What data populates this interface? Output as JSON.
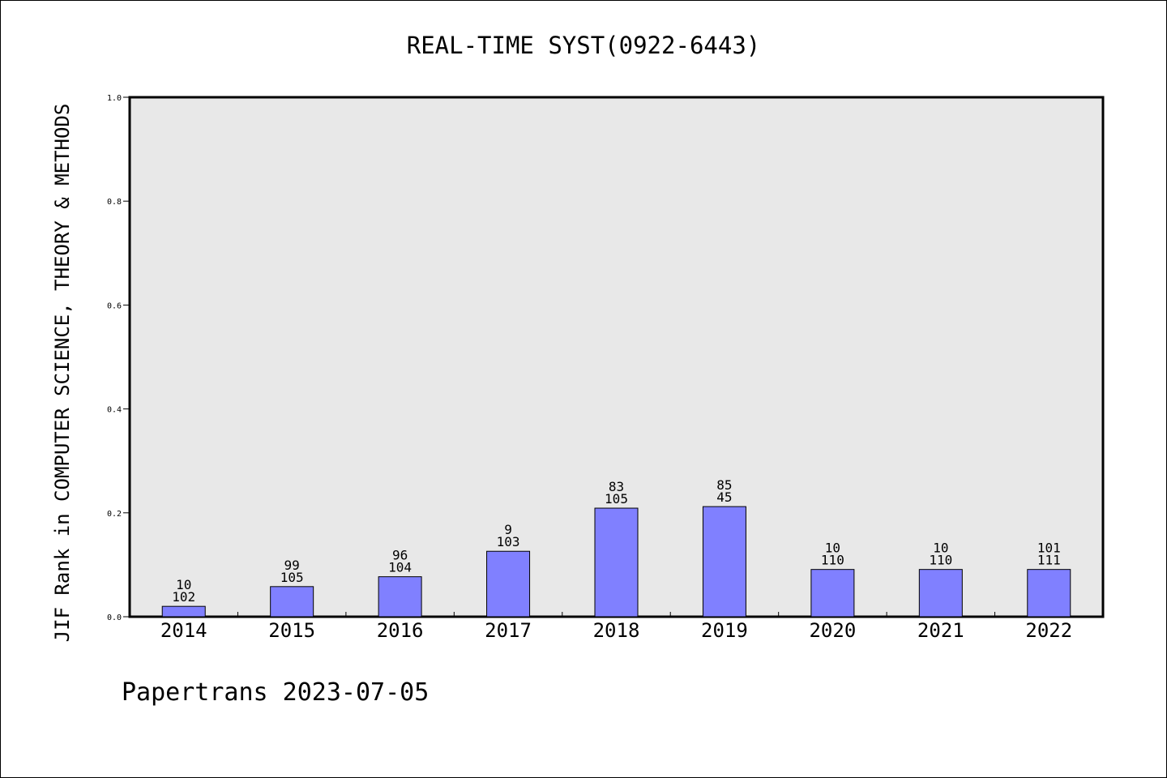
{
  "chart_data": {
    "type": "bar",
    "title": "REAL-TIME SYST(0922-6443)",
    "ylabel": "JIF Rank in COMPUTER SCIENCE, THEORY & METHODS",
    "xlabel": "",
    "ylim": [
      0,
      1.0
    ],
    "yticks": [
      "0.0",
      "0.2",
      "0.4",
      "0.6",
      "0.8",
      "1.0"
    ],
    "categories": [
      "2014",
      "2015",
      "2016",
      "2017",
      "2018",
      "2019",
      "2020",
      "2021",
      "2022"
    ],
    "values": [
      0.02,
      0.058,
      0.077,
      0.126,
      0.209,
      0.212,
      0.091,
      0.091,
      0.091
    ],
    "ranks": [
      "10",
      "99",
      "96",
      "9",
      "83",
      "85",
      "10",
      "10",
      "101"
    ],
    "totals": [
      "102",
      "105",
      "104",
      "103",
      "105",
      "45",
      "110",
      "110",
      "111"
    ],
    "bar_color": "#8080ff",
    "plot_background": "#e8e8e8",
    "grid": false
  },
  "footer": "Papertrans 2023-07-05"
}
